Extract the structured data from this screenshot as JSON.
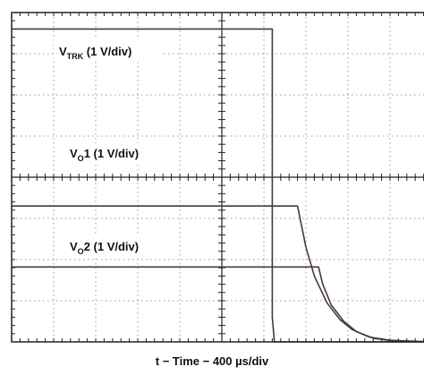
{
  "chart_data": {
    "type": "line",
    "xlabel": "t − Time − 400 µs/div",
    "grid": true,
    "divisions": {
      "x": 10,
      "y": 8
    },
    "time_per_div_us": 400,
    "channels": [
      {
        "name": "V",
        "subscript": "TRK",
        "suffix": " (1 V/div)",
        "volts_per_div": 1
      },
      {
        "name": "V",
        "subscript": "O",
        "suffix": "1 (1 V/div)",
        "volts_per_div": 1
      },
      {
        "name": "V",
        "subscript": "O",
        "suffix": "2 (1 V/div)",
        "volts_per_div": 1
      }
    ],
    "series": [
      {
        "name": "VTRK",
        "x_div": [
          0,
          6.2,
          6.2,
          6.25,
          10
        ],
        "y_div": [
          7.6,
          7.6,
          0.6,
          0.0,
          0.0
        ]
      },
      {
        "name": "VO1",
        "x_div": [
          0,
          6.8,
          6.9,
          7.0,
          7.2,
          7.5,
          7.8,
          8.1,
          8.5,
          9.0,
          10
        ],
        "y_div": [
          3.3,
          3.3,
          2.8,
          2.3,
          1.6,
          0.95,
          0.55,
          0.3,
          0.12,
          0.04,
          0.0
        ]
      },
      {
        "name": "VO2",
        "x_div": [
          0,
          7.3,
          7.4,
          7.6,
          7.9,
          8.2,
          8.6,
          9.1,
          10
        ],
        "y_div": [
          1.82,
          1.82,
          1.4,
          0.9,
          0.5,
          0.25,
          0.09,
          0.02,
          0.0
        ]
      }
    ],
    "colors": {
      "trace": "#4a3a34",
      "grid": "#9a9a9a",
      "frame": "#222222"
    }
  }
}
